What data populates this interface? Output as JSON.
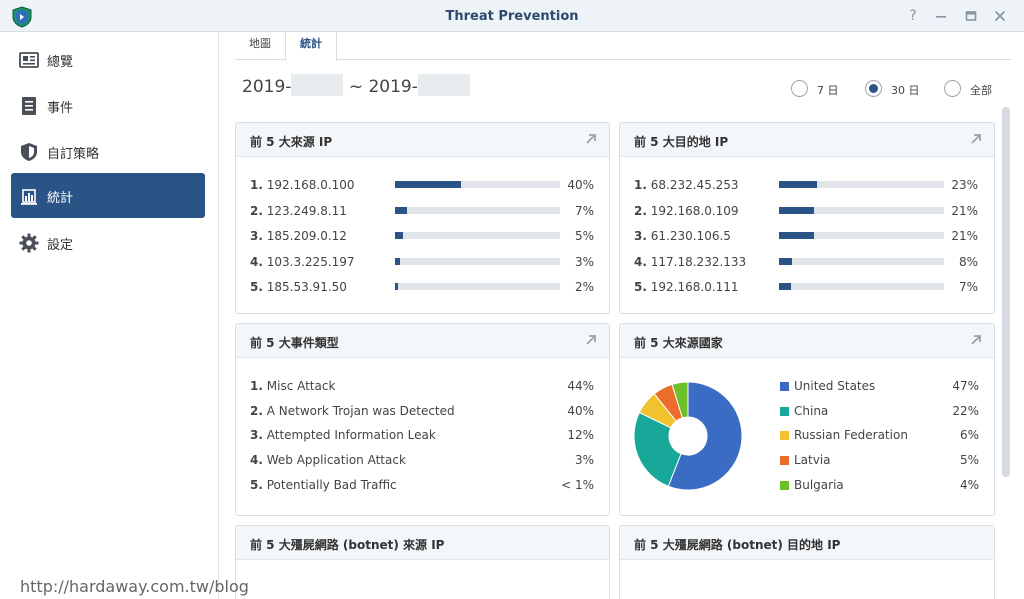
{
  "window": {
    "title": "Threat Prevention"
  },
  "sidebar": {
    "items": [
      {
        "label": "總覽",
        "icon": "overview-card-icon"
      },
      {
        "label": "事件",
        "icon": "event-list-icon"
      },
      {
        "label": "自訂策略",
        "icon": "shield-icon"
      },
      {
        "label": "統計",
        "icon": "statistics-icon",
        "active": true
      },
      {
        "label": "設定",
        "icon": "gear-icon"
      }
    ]
  },
  "tabs": [
    {
      "label": "地圖"
    },
    {
      "label": "統計",
      "active": true
    }
  ],
  "date_range": {
    "start": "2019-",
    "sep": "~",
    "end": "2019-"
  },
  "period_options": [
    {
      "label": "7 日",
      "checked": false
    },
    {
      "label": "30 日",
      "checked": true
    },
    {
      "label": "全部",
      "checked": false
    }
  ],
  "panels": {
    "top_source_ip": {
      "title": "前 5 大來源 IP",
      "rows": [
        {
          "rank": "1.",
          "label": "192.168.0.100",
          "percent": 40,
          "pct_text": "40%"
        },
        {
          "rank": "2.",
          "label": "123.249.8.11",
          "percent": 7,
          "pct_text": "7%"
        },
        {
          "rank": "3.",
          "label": "185.209.0.12",
          "percent": 5,
          "pct_text": "5%"
        },
        {
          "rank": "4.",
          "label": "103.3.225.197",
          "percent": 3,
          "pct_text": "3%"
        },
        {
          "rank": "5.",
          "label": "185.53.91.50",
          "percent": 2,
          "pct_text": "2%"
        }
      ]
    },
    "top_dest_ip": {
      "title": "前 5 大目的地 IP",
      "rows": [
        {
          "rank": "1.",
          "label": "68.232.45.253",
          "percent": 23,
          "pct_text": "23%"
        },
        {
          "rank": "2.",
          "label": "192.168.0.109",
          "percent": 21,
          "pct_text": "21%"
        },
        {
          "rank": "3.",
          "label": "61.230.106.5",
          "percent": 21,
          "pct_text": "21%"
        },
        {
          "rank": "4.",
          "label": "117.18.232.133",
          "percent": 8,
          "pct_text": "8%"
        },
        {
          "rank": "5.",
          "label": "192.168.0.111",
          "percent": 7,
          "pct_text": "7%"
        }
      ]
    },
    "top_event_types": {
      "title": "前 5 大事件類型",
      "rows": [
        {
          "rank": "1.",
          "label": "Misc Attack",
          "pct_text": "44%"
        },
        {
          "rank": "2.",
          "label": "A Network Trojan was Detected",
          "pct_text": "40%"
        },
        {
          "rank": "3.",
          "label": "Attempted Information Leak",
          "pct_text": "12%"
        },
        {
          "rank": "4.",
          "label": "Web Application Attack",
          "pct_text": "3%"
        },
        {
          "rank": "5.",
          "label": "Potentially Bad Traffic",
          "pct_text": "< 1%"
        }
      ]
    },
    "top_source_countries": {
      "title": "前 5 大來源國家",
      "rows": [
        {
          "label": "United States",
          "pct_text": "47%",
          "color": "#3b6cc4"
        },
        {
          "label": "China",
          "pct_text": "22%",
          "color": "#17a89a"
        },
        {
          "label": "Russian Federation",
          "pct_text": "6%",
          "color": "#f2c12e"
        },
        {
          "label": "Latvia",
          "pct_text": "5%",
          "color": "#ec6d2b"
        },
        {
          "label": "Bulgaria",
          "pct_text": "4%",
          "color": "#6cc02a"
        }
      ]
    },
    "botnet_source_ip": {
      "title": "前 5 大殭屍網路 (botnet) 來源 IP"
    },
    "botnet_dest_ip": {
      "title": "前 5 大殭屍網路 (botnet) 目的地 IP"
    }
  },
  "chart_data": {
    "type": "pie",
    "title": "前 5 大來源國家",
    "categories": [
      "United States",
      "China",
      "Russian Federation",
      "Latvia",
      "Bulgaria"
    ],
    "values": [
      47,
      22,
      6,
      5,
      4
    ],
    "colors": [
      "#3b6cc4",
      "#17a89a",
      "#f2c12e",
      "#ec6d2b",
      "#6cc02a"
    ],
    "donut": true,
    "legend": "right"
  },
  "watermark": "http://hardaway.com.tw/blog"
}
